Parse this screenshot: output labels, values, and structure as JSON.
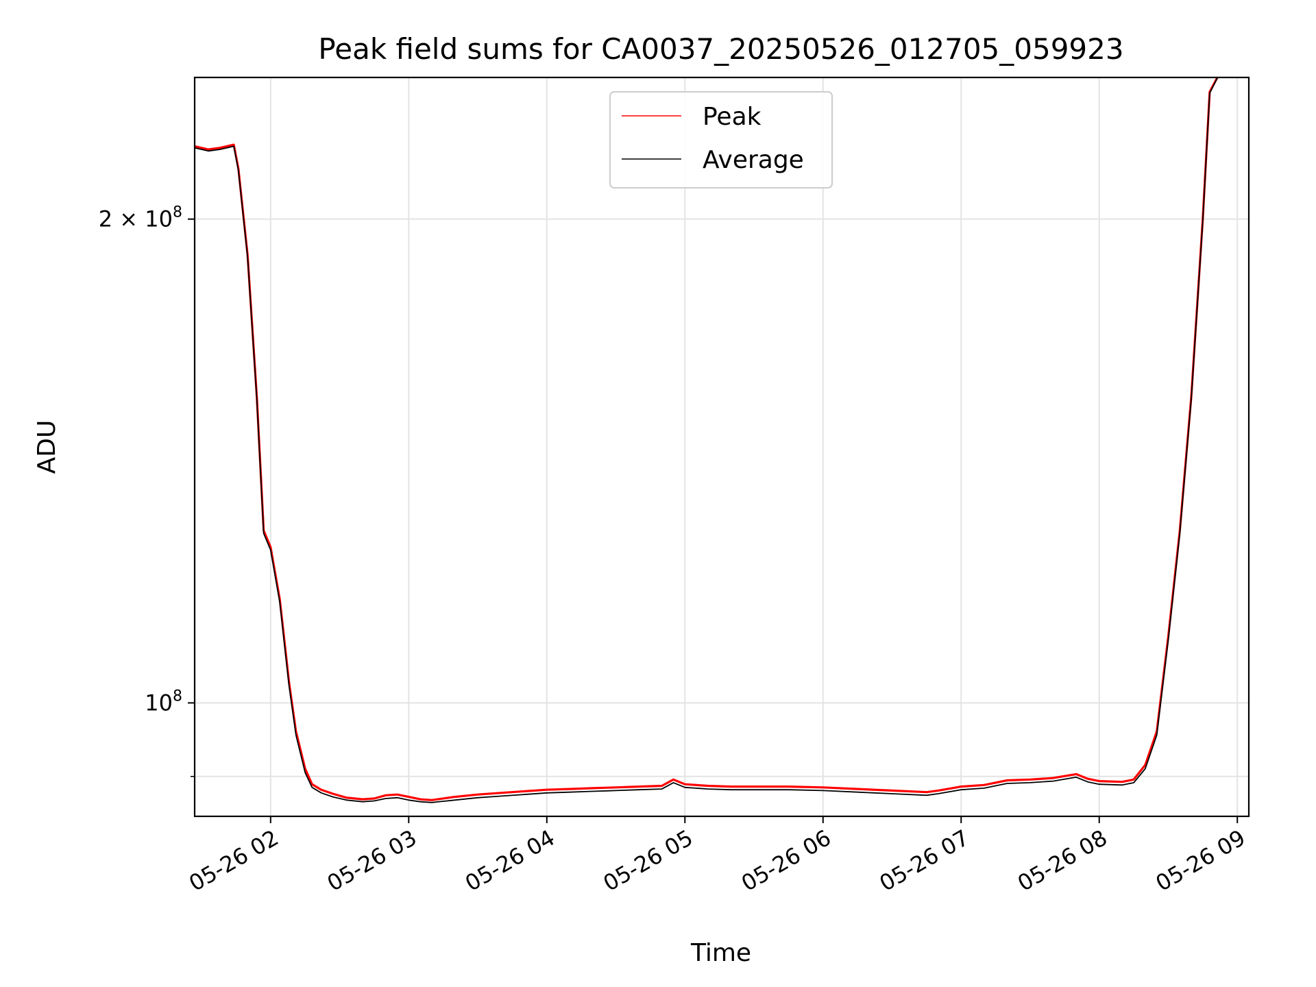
{
  "chart_data": {
    "type": "line",
    "title": "Peak field sums for CA0037_20250526_012705_059923",
    "xlabel": "Time",
    "ylabel": "ADU",
    "x_scale": "time",
    "y_scale": "log",
    "xlim": [
      "05-26 01:27",
      "05-26 09:05"
    ],
    "ylim": [
      85000000,
      245000000
    ],
    "grid": true,
    "legend_position": "top-center",
    "x_ticks": [
      "05-26 02",
      "05-26 03",
      "05-26 04",
      "05-26 05",
      "05-26 06",
      "05-26 07",
      "05-26 08",
      "05-26 09"
    ],
    "y_ticks": [
      {
        "value": 200000000,
        "label_base": "2 × 10",
        "label_exp": "8"
      },
      {
        "value": 100000000,
        "label_base": "10",
        "label_exp": "8"
      }
    ],
    "y_minor_ticks": [
      90000000
    ],
    "x": [
      "01:27",
      "01:33",
      "01:38",
      "01:44",
      "01:46",
      "01:50",
      "01:54",
      "01:57",
      "02:00",
      "02:04",
      "02:08",
      "02:11",
      "02:15",
      "02:18",
      "02:22",
      "02:27",
      "02:33",
      "02:40",
      "02:45",
      "02:50",
      "02:55",
      "03:00",
      "03:05",
      "03:10",
      "03:20",
      "03:30",
      "03:40",
      "03:50",
      "04:00",
      "04:10",
      "04:20",
      "04:30",
      "04:40",
      "04:50",
      "04:55",
      "05:00",
      "05:10",
      "05:20",
      "05:30",
      "05:45",
      "06:00",
      "06:15",
      "06:30",
      "06:45",
      "06:50",
      "07:00",
      "07:10",
      "07:20",
      "07:30",
      "07:40",
      "07:50",
      "07:55",
      "08:00",
      "08:10",
      "08:15",
      "08:20",
      "08:25",
      "08:30",
      "08:35",
      "08:40",
      "08:45",
      "08:48",
      "08:52"
    ],
    "series": [
      {
        "name": "Peak",
        "color": "#ff0000",
        "values": [
          222000000,
          221000000,
          221500000,
          222500000,
          215000000,
          190000000,
          155000000,
          128000000,
          125000000,
          116000000,
          103000000,
          96000000,
          91000000,
          89000000,
          88300000,
          87800000,
          87300000,
          87100000,
          87200000,
          87600000,
          87700000,
          87400000,
          87100000,
          87000000,
          87400000,
          87700000,
          87900000,
          88100000,
          88300000,
          88400000,
          88500000,
          88600000,
          88700000,
          88800000,
          89600000,
          89000000,
          88800000,
          88700000,
          88700000,
          88700000,
          88600000,
          88400000,
          88200000,
          88000000,
          88200000,
          88700000,
          88900000,
          89500000,
          89600000,
          89800000,
          90300000,
          89700000,
          89400000,
          89300000,
          89600000,
          91500000,
          96000000,
          110000000,
          128000000,
          155000000,
          200000000,
          240000000,
          246000000
        ]
      },
      {
        "name": "Average",
        "color": "#000000",
        "values": [
          221500000,
          220500000,
          221000000,
          222000000,
          214500000,
          189500000,
          154500000,
          127500000,
          124500000,
          115500000,
          102500000,
          95500000,
          90500000,
          88600000,
          87900000,
          87400000,
          87000000,
          86800000,
          86900000,
          87200000,
          87300000,
          87000000,
          86800000,
          86700000,
          87000000,
          87300000,
          87500000,
          87700000,
          87900000,
          88000000,
          88100000,
          88200000,
          88300000,
          88400000,
          89200000,
          88600000,
          88400000,
          88300000,
          88300000,
          88300000,
          88200000,
          88000000,
          87800000,
          87600000,
          87800000,
          88300000,
          88500000,
          89100000,
          89200000,
          89400000,
          89900000,
          89300000,
          89000000,
          88900000,
          89200000,
          91000000,
          95500000,
          109500000,
          127500000,
          154500000,
          199500000,
          239500000,
          246000000
        ]
      }
    ]
  }
}
